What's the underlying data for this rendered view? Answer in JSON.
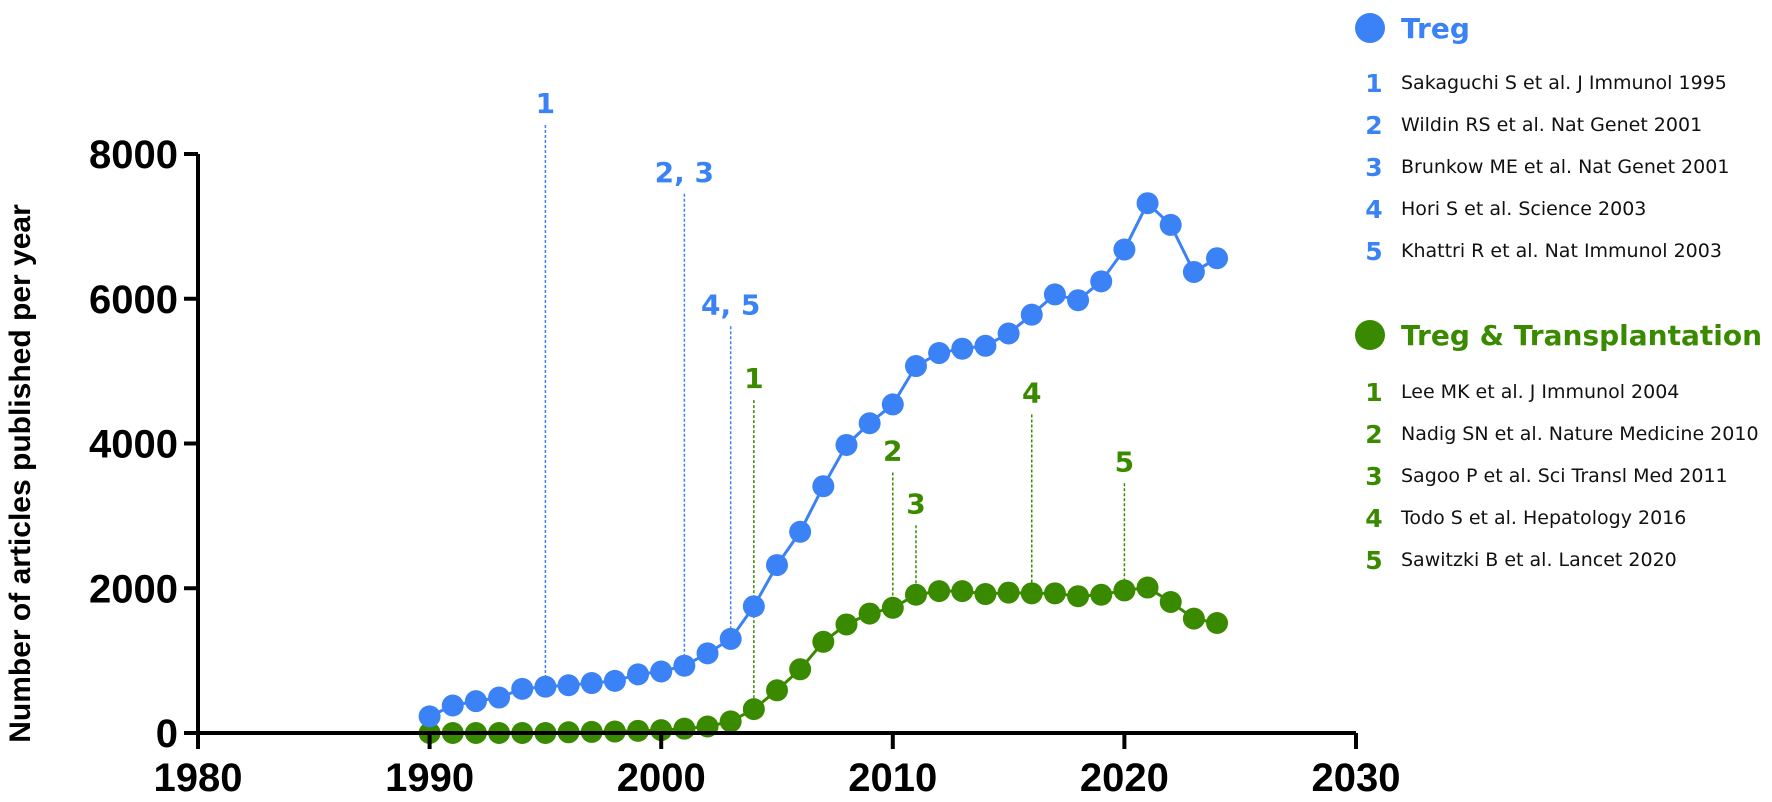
{
  "chart_data": {
    "type": "line",
    "title": "",
    "xlabel": "",
    "ylabel": "Number of articles published per year",
    "xlim": [
      1980,
      2030
    ],
    "ylim": [
      0,
      8000
    ],
    "xticks": [
      1980,
      1990,
      2000,
      2010,
      2020,
      2030
    ],
    "yticks": [
      0,
      2000,
      4000,
      6000,
      8000
    ],
    "grid": false,
    "legend_position": "right",
    "x": [
      1990,
      1991,
      1992,
      1993,
      1994,
      1995,
      1996,
      1997,
      1998,
      1999,
      2000,
      2001,
      2002,
      2003,
      2004,
      2005,
      2006,
      2007,
      2008,
      2009,
      2010,
      2011,
      2012,
      2013,
      2014,
      2015,
      2016,
      2017,
      2018,
      2019,
      2020,
      2021,
      2022,
      2023,
      2024
    ],
    "series": [
      {
        "name": "Treg",
        "color": "#3b82f6",
        "values": [
          230,
          380,
          440,
          490,
          610,
          640,
          660,
          690,
          720,
          810,
          850,
          930,
          1100,
          1300,
          1750,
          2320,
          2780,
          3410,
          3980,
          4280,
          4540,
          5070,
          5250,
          5310,
          5350,
          5520,
          5780,
          6060,
          5980,
          6240,
          6680,
          7320,
          7020,
          6370,
          6560
        ]
      },
      {
        "name": "Treg & Transplantation",
        "color": "#3a8a00",
        "values": [
          0,
          0,
          0,
          0,
          0,
          0,
          10,
          15,
          20,
          30,
          40,
          60,
          90,
          160,
          330,
          590,
          880,
          1260,
          1500,
          1650,
          1730,
          1910,
          1960,
          1960,
          1920,
          1940,
          1930,
          1930,
          1890,
          1910,
          1970,
          2010,
          1810,
          1580,
          1520
        ]
      }
    ],
    "annotations": [
      {
        "series": "Treg",
        "label": "1",
        "x": 1995,
        "top_value": 8400
      },
      {
        "series": "Treg",
        "label": "2, 3",
        "x": 2001,
        "top_value": 7450
      },
      {
        "series": "Treg",
        "label": "4, 5",
        "x": 2003,
        "top_value": 5620
      },
      {
        "series": "Treg & Transplantation",
        "label": "1",
        "x": 2004,
        "top_value": 4600
      },
      {
        "series": "Treg & Transplantation",
        "label": "2",
        "x": 2010,
        "top_value": 3600
      },
      {
        "series": "Treg & Transplantation",
        "label": "3",
        "x": 2011,
        "top_value": 2870
      },
      {
        "series": "Treg & Transplantation",
        "label": "4",
        "x": 2016,
        "top_value": 4400
      },
      {
        "series": "Treg & Transplantation",
        "label": "5",
        "x": 2020,
        "top_value": 3450
      }
    ]
  },
  "legend": {
    "treg": {
      "title": "Treg",
      "color": "#3b82f6",
      "items": [
        {
          "num": "1",
          "text": "Sakaguchi S et al. J Immunol 1995"
        },
        {
          "num": "2",
          "text": "Wildin RS et al. Nat Genet 2001"
        },
        {
          "num": "3",
          "text": "Brunkow ME et al. Nat Genet 2001"
        },
        {
          "num": "4",
          "text": "Hori S et al. Science 2003"
        },
        {
          "num": "5",
          "text": "Khattri R et al. Nat Immunol 2003"
        }
      ]
    },
    "transplant": {
      "title": "Treg & Transplantation",
      "color": "#3a8a00",
      "items": [
        {
          "num": "1",
          "text": "Lee MK et al. J Immunol 2004"
        },
        {
          "num": "2",
          "text": "Nadig SN et al. Nature Medicine 2010"
        },
        {
          "num": "3",
          "text": "Sagoo P et al. Sci Transl Med 2011"
        },
        {
          "num": "4",
          "text": "Todo S et al. Hepatology 2016"
        },
        {
          "num": "5",
          "text": "Sawitzki B et al. Lancet 2020"
        }
      ]
    }
  }
}
